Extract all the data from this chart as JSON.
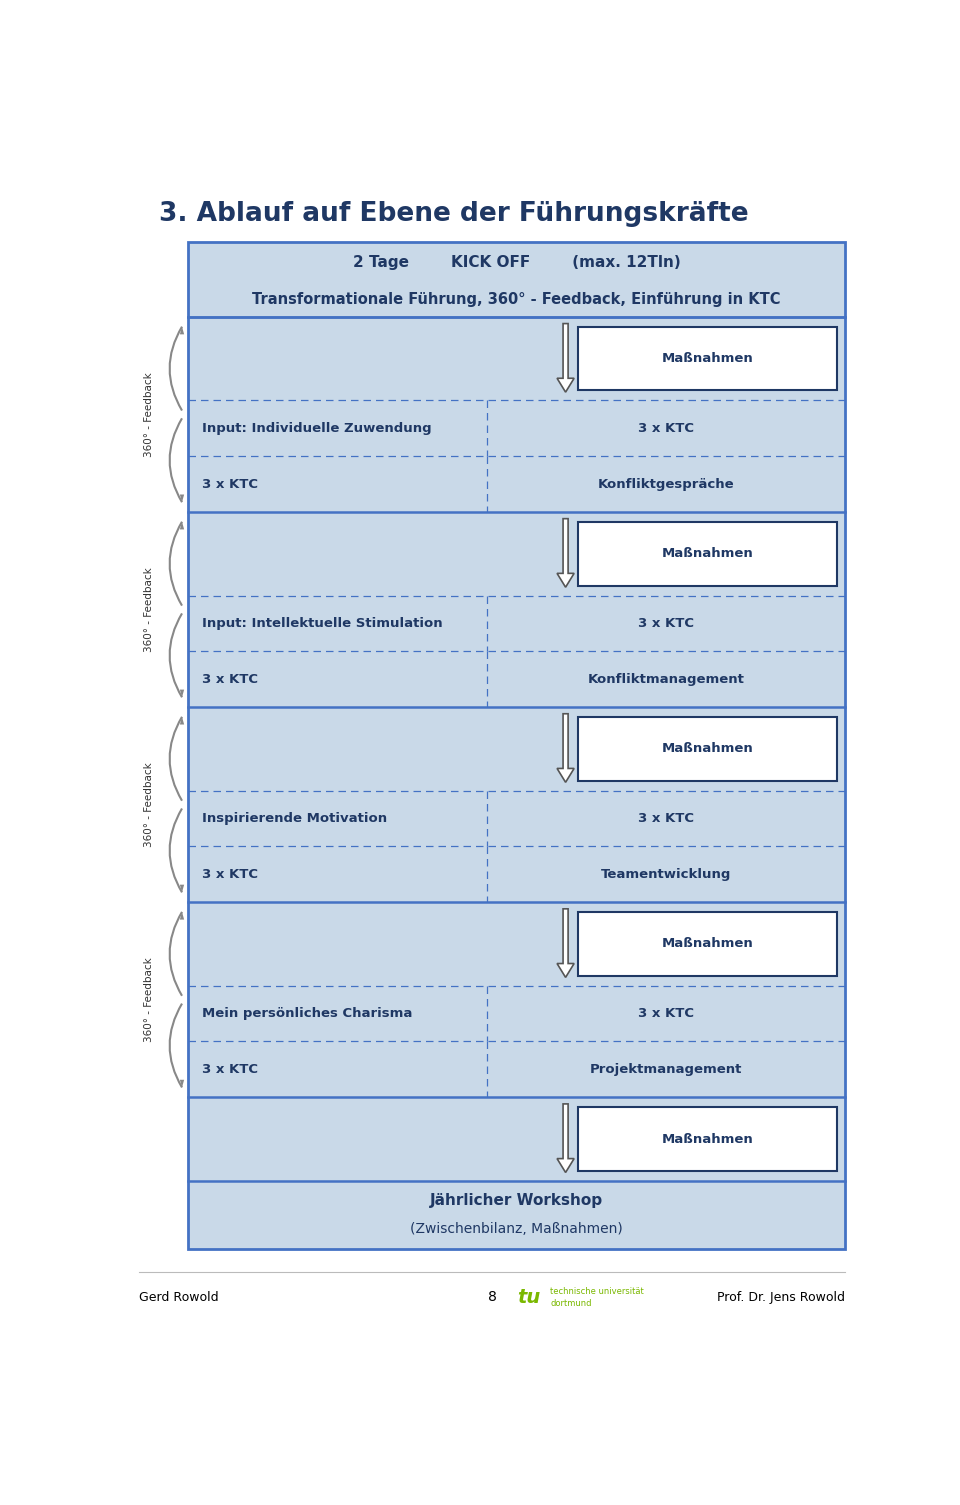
{
  "title": "3. Ablauf auf Ebene der Führungskräfte",
  "title_color": "#1F3864",
  "bg_color": "#ffffff",
  "box_bg": "#C9D9E8",
  "box_border": "#4472C4",
  "text_color": "#1F3864",
  "header_line1": "2 Tage        KICK OFF        (max. 12Tln)",
  "header_line2": "Transformationale Führung, 360° - Feedback, Einführung in KTC",
  "rows": [
    {
      "type": "massnahmen"
    },
    {
      "type": "input",
      "left": "Input: Individuelle Zuwendung",
      "right": "3 x KTC"
    },
    {
      "type": "ktc",
      "left": "3 x KTC",
      "right": "Konfliktgespräche"
    },
    {
      "type": "massnahmen"
    },
    {
      "type": "input",
      "left": "Input: Intellektuelle Stimulation",
      "right": "3 x KTC"
    },
    {
      "type": "ktc",
      "left": "3 x KTC",
      "right": "Konfliktmanagement"
    },
    {
      "type": "massnahmen"
    },
    {
      "type": "input",
      "left": "Inspirierende Motivation",
      "right": "3 x KTC"
    },
    {
      "type": "ktc",
      "left": "3 x KTC",
      "right": "Teamentwicklung"
    },
    {
      "type": "massnahmen"
    },
    {
      "type": "input",
      "left": "Mein persönliches Charisma",
      "right": "3 x KTC"
    },
    {
      "type": "ktc",
      "left": "3 x KTC",
      "right": "Projektmanagement"
    },
    {
      "type": "massnahmen"
    }
  ],
  "footer_line1": "Jährlicher Workshop",
  "footer_line2": "(Zwischenbilanz, Maßnahmen)",
  "feedback_labels": [
    "360° - Feedback",
    "360° - Feedback",
    "360° - Feedback",
    "360° - Feedback"
  ],
  "page_num": "8",
  "author": "Gerd Rowold",
  "prof": "Prof. Dr. Jens Rowold"
}
